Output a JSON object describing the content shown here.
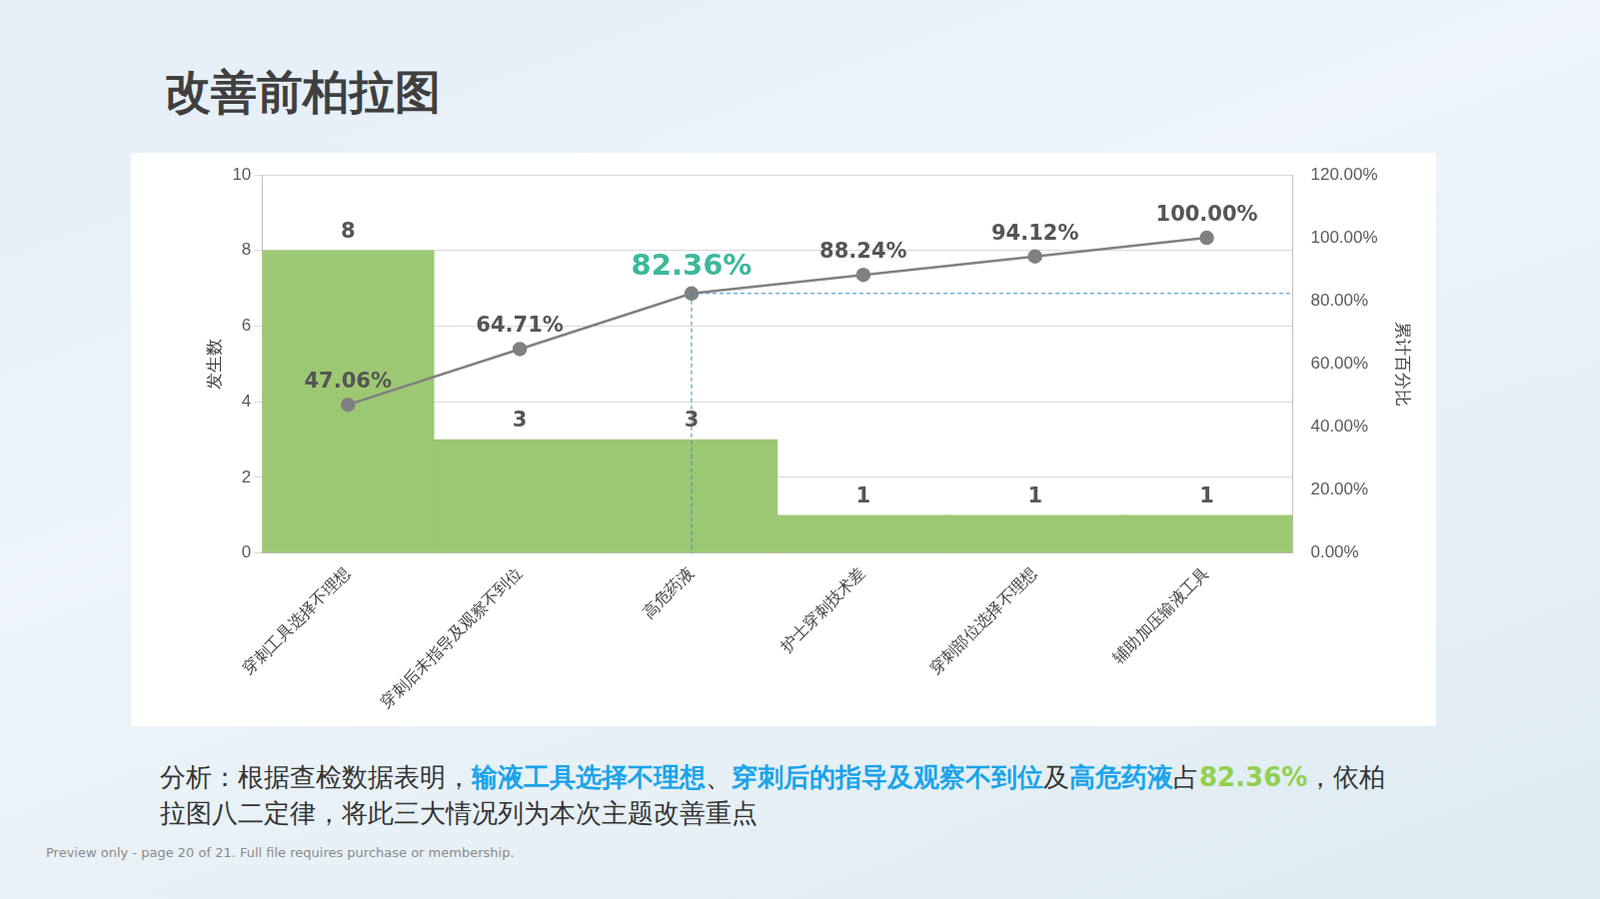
{
  "page": {
    "title": "改善前柏拉图",
    "analysis": [
      {
        "text": "分析：根据查检数据表明，",
        "style": "normal"
      },
      {
        "text": "输液工具选择不理想",
        "style": "blue"
      },
      {
        "text": "、",
        "style": "normal"
      },
      {
        "text": "穿刺后的指导及观察不到位",
        "style": "blue"
      },
      {
        "text": "及",
        "style": "normal"
      },
      {
        "text": "高危药液",
        "style": "blue"
      },
      {
        "text": "占",
        "style": "normal"
      },
      {
        "text": "82.36%",
        "style": "green"
      },
      {
        "text": "，依柏拉图八二定律，将此三大情况列为本次主题改善重点",
        "style": "normal"
      }
    ],
    "footer": "Preview only - page 20 of 21. Full file requires purchase or membership."
  },
  "chart_data": {
    "type": "bar",
    "categories": [
      "穿刺工具选择不理想",
      "穿刺后未指导及观察不到位",
      "高危药液",
      "护士穿刺技术差",
      "穿刺部位选择不理想",
      "辅助加压输液工具"
    ],
    "series": [
      {
        "name": "发生数",
        "type": "bar",
        "color": "#9dc873",
        "values": [
          8,
          3,
          3,
          1,
          1,
          1
        ]
      },
      {
        "name": "累计百分比",
        "type": "line",
        "axis": "y2",
        "color": "#808080",
        "marker": "circle",
        "values": [
          47.06,
          64.71,
          82.36,
          88.24,
          94.12,
          100.0
        ],
        "value_labels": [
          "47.06%",
          "64.71%",
          "82.36%",
          "88.24%",
          "94.12%",
          "100.00%"
        ]
      }
    ],
    "y_label": "发生数",
    "y2_label": "累计百分比",
    "ylim": [
      0,
      10
    ],
    "yticks": [
      0,
      2,
      4,
      6,
      8,
      10
    ],
    "y2lim": [
      0,
      120
    ],
    "y2ticks": [
      {
        "value": 0,
        "label": "0.00%"
      },
      {
        "value": 20,
        "label": "20.00%"
      },
      {
        "value": 40,
        "label": "40.00%"
      },
      {
        "value": 60,
        "label": "60.00%"
      },
      {
        "value": 80,
        "label": "80.00%"
      },
      {
        "value": 100,
        "label": "100.00%"
      },
      {
        "value": 120,
        "label": "120.00%"
      }
    ],
    "grid": true,
    "data_labels": true
  }
}
